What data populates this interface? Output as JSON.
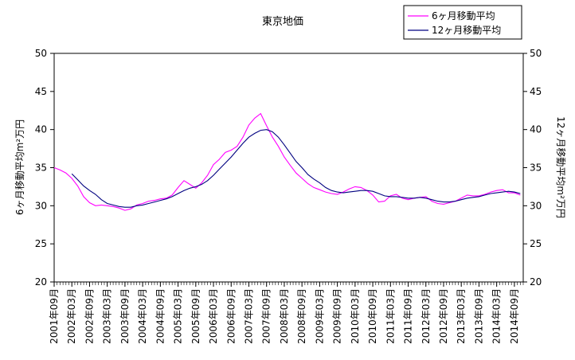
{
  "chart_data": {
    "type": "line",
    "title": "東京地価",
    "ylabel": "6ヶ月移動平均m²万円",
    "y2label": "12ヶ月移動平均m²万円",
    "xlabel": "",
    "ylim": [
      20,
      50
    ],
    "y2lim": [
      20,
      50
    ],
    "yticks": [
      20,
      25,
      30,
      35,
      40,
      45,
      50
    ],
    "y2ticks": [
      20,
      25,
      30,
      35,
      40,
      45,
      50
    ],
    "x_tick_labels": [
      "2001年09月",
      "2002年03月",
      "2002年09月",
      "2003年03月",
      "2003年09月",
      "2004年03月",
      "2004年09月",
      "2005年03月",
      "2005年09月",
      "2006年03月",
      "2006年09月",
      "2007年03月",
      "2007年09月",
      "2008年03月",
      "2008年09月",
      "2009年03月",
      "2009年09月",
      "2010年03月",
      "2010年09月",
      "2011年03月",
      "2011年09月",
      "2012年03月",
      "2012年09月",
      "2013年03月",
      "2013年09月",
      "2014年03月",
      "2014年09月"
    ],
    "legend_position": "top-right",
    "grid": false,
    "series": [
      {
        "name": "6ヶ月移動平均",
        "color": "#ff00ff",
        "axis": "left",
        "points": [
          [
            "2001-09",
            35.0
          ],
          [
            "2001-11",
            34.7
          ],
          [
            "2002-01",
            34.3
          ],
          [
            "2002-03",
            33.6
          ],
          [
            "2002-05",
            32.6
          ],
          [
            "2002-07",
            31.2
          ],
          [
            "2002-09",
            30.4
          ],
          [
            "2002-11",
            30.0
          ],
          [
            "2003-01",
            30.1
          ],
          [
            "2003-03",
            30.0
          ],
          [
            "2003-05",
            29.9
          ],
          [
            "2003-07",
            29.7
          ],
          [
            "2003-09",
            29.4
          ],
          [
            "2003-11",
            29.6
          ],
          [
            "2004-01",
            30.1
          ],
          [
            "2004-03",
            30.3
          ],
          [
            "2004-05",
            30.6
          ],
          [
            "2004-07",
            30.7
          ],
          [
            "2004-09",
            30.9
          ],
          [
            "2004-11",
            31.0
          ],
          [
            "2005-01",
            31.4
          ],
          [
            "2005-03",
            32.4
          ],
          [
            "2005-05",
            33.3
          ],
          [
            "2005-07",
            32.8
          ],
          [
            "2005-09",
            32.3
          ],
          [
            "2005-11",
            33.0
          ],
          [
            "2006-01",
            34.0
          ],
          [
            "2006-03",
            35.4
          ],
          [
            "2006-05",
            36.1
          ],
          [
            "2006-07",
            37.0
          ],
          [
            "2006-09",
            37.3
          ],
          [
            "2006-11",
            37.8
          ],
          [
            "2007-01",
            39.0
          ],
          [
            "2007-03",
            40.6
          ],
          [
            "2007-05",
            41.5
          ],
          [
            "2007-07",
            42.1
          ],
          [
            "2007-09",
            40.5
          ],
          [
            "2007-11",
            39.0
          ],
          [
            "2008-01",
            37.8
          ],
          [
            "2008-03",
            36.4
          ],
          [
            "2008-05",
            35.3
          ],
          [
            "2008-07",
            34.3
          ],
          [
            "2008-09",
            33.6
          ],
          [
            "2008-11",
            32.9
          ],
          [
            "2009-01",
            32.4
          ],
          [
            "2009-03",
            32.1
          ],
          [
            "2009-05",
            31.8
          ],
          [
            "2009-07",
            31.6
          ],
          [
            "2009-09",
            31.5
          ],
          [
            "2009-11",
            31.8
          ],
          [
            "2010-01",
            32.2
          ],
          [
            "2010-03",
            32.5
          ],
          [
            "2010-05",
            32.4
          ],
          [
            "2010-07",
            32.0
          ],
          [
            "2010-09",
            31.4
          ],
          [
            "2010-11",
            30.5
          ],
          [
            "2011-01",
            30.6
          ],
          [
            "2011-03",
            31.3
          ],
          [
            "2011-05",
            31.5
          ],
          [
            "2011-07",
            31.0
          ],
          [
            "2011-09",
            30.8
          ],
          [
            "2011-11",
            31.0
          ],
          [
            "2012-01",
            31.1
          ],
          [
            "2012-03",
            31.2
          ],
          [
            "2012-05",
            30.6
          ],
          [
            "2012-07",
            30.3
          ],
          [
            "2012-09",
            30.2
          ],
          [
            "2012-11",
            30.4
          ],
          [
            "2013-01",
            30.6
          ],
          [
            "2013-03",
            31.0
          ],
          [
            "2013-05",
            31.4
          ],
          [
            "2013-07",
            31.3
          ],
          [
            "2013-09",
            31.3
          ],
          [
            "2013-11",
            31.5
          ],
          [
            "2014-01",
            31.8
          ],
          [
            "2014-03",
            32.0
          ],
          [
            "2014-05",
            32.1
          ],
          [
            "2014-07",
            31.7
          ],
          [
            "2014-09",
            31.7
          ],
          [
            "2014-11",
            31.4
          ]
        ]
      },
      {
        "name": "12ヶ月移動平均",
        "color": "#000080",
        "axis": "left",
        "points": [
          [
            "2002-03",
            34.2
          ],
          [
            "2002-05",
            33.4
          ],
          [
            "2002-07",
            32.6
          ],
          [
            "2002-09",
            32.0
          ],
          [
            "2002-11",
            31.5
          ],
          [
            "2003-01",
            30.8
          ],
          [
            "2003-03",
            30.3
          ],
          [
            "2003-05",
            30.1
          ],
          [
            "2003-07",
            29.9
          ],
          [
            "2003-09",
            29.8
          ],
          [
            "2003-11",
            29.8
          ],
          [
            "2004-01",
            30.0
          ],
          [
            "2004-03",
            30.1
          ],
          [
            "2004-05",
            30.3
          ],
          [
            "2004-07",
            30.5
          ],
          [
            "2004-09",
            30.7
          ],
          [
            "2004-11",
            30.9
          ],
          [
            "2005-01",
            31.2
          ],
          [
            "2005-03",
            31.6
          ],
          [
            "2005-05",
            32.0
          ],
          [
            "2005-07",
            32.3
          ],
          [
            "2005-09",
            32.5
          ],
          [
            "2005-11",
            32.8
          ],
          [
            "2006-01",
            33.3
          ],
          [
            "2006-03",
            34.0
          ],
          [
            "2006-05",
            34.8
          ],
          [
            "2006-07",
            35.6
          ],
          [
            "2006-09",
            36.4
          ],
          [
            "2006-11",
            37.3
          ],
          [
            "2007-01",
            38.2
          ],
          [
            "2007-03",
            39.0
          ],
          [
            "2007-05",
            39.5
          ],
          [
            "2007-07",
            39.9
          ],
          [
            "2007-09",
            40.0
          ],
          [
            "2007-11",
            39.7
          ],
          [
            "2008-01",
            39.0
          ],
          [
            "2008-03",
            38.0
          ],
          [
            "2008-05",
            36.9
          ],
          [
            "2008-07",
            35.8
          ],
          [
            "2008-09",
            35.0
          ],
          [
            "2008-11",
            34.1
          ],
          [
            "2009-01",
            33.5
          ],
          [
            "2009-03",
            33.0
          ],
          [
            "2009-05",
            32.4
          ],
          [
            "2009-07",
            32.0
          ],
          [
            "2009-09",
            31.8
          ],
          [
            "2009-11",
            31.7
          ],
          [
            "2010-01",
            31.8
          ],
          [
            "2010-03",
            31.9
          ],
          [
            "2010-05",
            32.0
          ],
          [
            "2010-07",
            32.0
          ],
          [
            "2010-09",
            31.9
          ],
          [
            "2010-11",
            31.6
          ],
          [
            "2011-01",
            31.3
          ],
          [
            "2011-03",
            31.2
          ],
          [
            "2011-05",
            31.2
          ],
          [
            "2011-07",
            31.1
          ],
          [
            "2011-09",
            31.0
          ],
          [
            "2011-11",
            31.0
          ],
          [
            "2012-01",
            31.1
          ],
          [
            "2012-03",
            31.0
          ],
          [
            "2012-05",
            30.8
          ],
          [
            "2012-07",
            30.6
          ],
          [
            "2012-09",
            30.5
          ],
          [
            "2012-11",
            30.5
          ],
          [
            "2013-01",
            30.6
          ],
          [
            "2013-03",
            30.8
          ],
          [
            "2013-05",
            31.0
          ],
          [
            "2013-07",
            31.1
          ],
          [
            "2013-09",
            31.2
          ],
          [
            "2013-11",
            31.4
          ],
          [
            "2014-01",
            31.6
          ],
          [
            "2014-03",
            31.7
          ],
          [
            "2014-05",
            31.8
          ],
          [
            "2014-07",
            31.9
          ],
          [
            "2014-09",
            31.8
          ],
          [
            "2014-11",
            31.6
          ]
        ]
      }
    ]
  }
}
